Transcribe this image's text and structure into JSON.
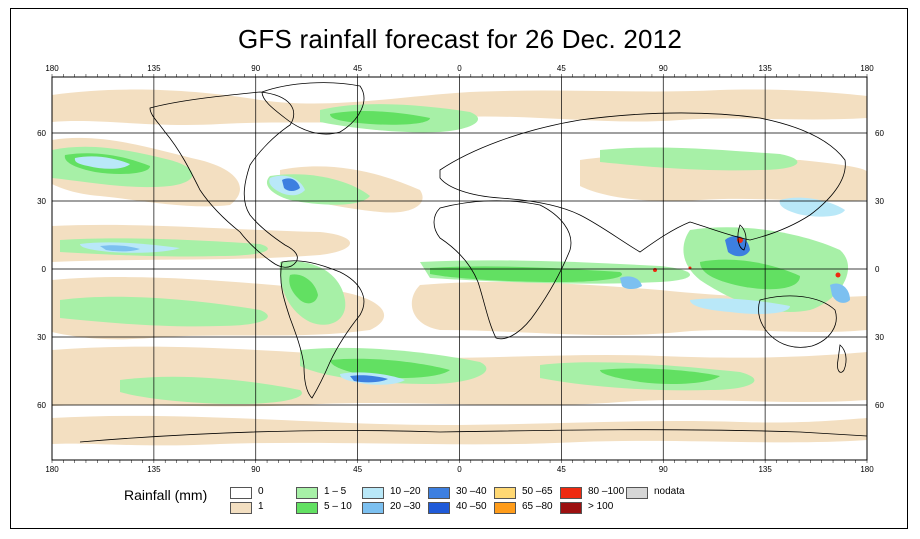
{
  "title": "GFS rainfall forecast for 26 Dec. 2012",
  "axis": {
    "lon_labels": [
      "180",
      "135",
      "90",
      "45",
      "0",
      "45",
      "90",
      "135",
      "180"
    ],
    "lat_labels": [
      "60",
      "30",
      "0",
      "30",
      "60"
    ]
  },
  "legend": {
    "title": "Rainfall (mm)",
    "items": [
      {
        "label": "0",
        "color": "#ffffff"
      },
      {
        "label": "1",
        "color": "#f3dfc1"
      },
      {
        "label": "1 – 5",
        "color": "#a7f0a7"
      },
      {
        "label": "5 – 10",
        "color": "#62e062"
      },
      {
        "label": "10 –20",
        "color": "#b9e8f8"
      },
      {
        "label": "20 –30",
        "color": "#7cc0f0"
      },
      {
        "label": "30 –40",
        "color": "#3d7fe0"
      },
      {
        "label": "40 –50",
        "color": "#1f5ad8"
      },
      {
        "label": "50 –65",
        "color": "#ffd873"
      },
      {
        "label": "65 –80",
        "color": "#ff9c1a"
      },
      {
        "label": "80 –100",
        "color": "#ee2a10"
      },
      {
        "label": "> 100",
        "color": "#9c1010"
      },
      {
        "label": "nodata",
        "color": "#d6d6d6"
      }
    ]
  },
  "colors": {
    "ocean": "#ffffff",
    "light_rain": "#f3dfc1",
    "rain_1_5": "#a7f0a7",
    "rain_5_10": "#62e062",
    "rain_10_20": "#b9e8f8",
    "rain_20_30": "#7cc0f0",
    "rain_30_40": "#3d7fe0",
    "rain_high": "#ee2a10"
  }
}
